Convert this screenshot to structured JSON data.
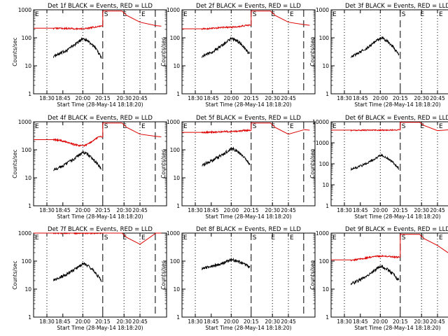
{
  "colors": {
    "events": "#000000",
    "lld": "#dd0000",
    "axes": "#000000",
    "background": "#ffffff"
  },
  "chart_data": [
    {
      "type": "line",
      "title": "Det 1f BLACK = Events, RED = LLD",
      "xlabel": "Start Time (28-May-14 18:18:20)",
      "ylabel": "Counts/sec",
      "ylim": [
        1,
        1000
      ],
      "yscale": "log",
      "yticks": [
        "1",
        "10",
        "100",
        "1000"
      ],
      "xticks": [
        "18:30",
        "18:45",
        "20:00",
        "20:15",
        "20:30",
        "20:45"
      ],
      "markers": [
        "E",
        "S",
        "E",
        "E"
      ],
      "series": [
        {
          "color": "#000000",
          "start_y": 22,
          "peak_y": 95,
          "end_y": 20
        },
        {
          "color": "#dd0000",
          "start_y": 220,
          "peak_y": 210,
          "end_y": 260,
          "saturated": 900
        }
      ]
    },
    {
      "type": "line",
      "title": "Det 2f BLACK = Events, RED = LLD",
      "xlabel": "Start Time (28-May-14 18:18:20)",
      "ylabel": "Counts/sec",
      "ylim": [
        1,
        1000
      ],
      "yscale": "log",
      "yticks": [
        "1",
        "10",
        "100",
        "1000"
      ],
      "xticks": [
        "18:30",
        "18:45",
        "20:00",
        "20:15",
        "20:30",
        "20:45"
      ],
      "markers": [
        "E",
        "S",
        "E",
        "E"
      ],
      "series": [
        {
          "color": "#000000",
          "start_y": 22,
          "peak_y": 95,
          "end_y": 25
        },
        {
          "color": "#dd0000",
          "start_y": 210,
          "peak_y": 240,
          "end_y": 280,
          "saturated": 900
        }
      ]
    },
    {
      "type": "line",
      "title": "Det 3f BLACK = Events, RED = LLD",
      "xlabel": "Start Time (28-May-14 18:18:20)",
      "ylabel": "Counts/sec",
      "ylim": [
        1,
        1000
      ],
      "yscale": "log",
      "yticks": [
        "1",
        "10",
        "100",
        "1000"
      ],
      "xticks": [
        "18:30",
        "18:45",
        "20:00",
        "20:15",
        "20:30",
        "20:45"
      ],
      "markers": [
        "E",
        "S",
        "E",
        "E"
      ],
      "series": [
        {
          "color": "#000000",
          "start_y": 22,
          "peak_y": 100,
          "end_y": 25
        }
      ]
    },
    {
      "type": "line",
      "title": "Det 4f BLACK = Events, RED = LLD",
      "xlabel": "Start Time (28-May-14 18:18:20)",
      "ylabel": "Counts/sec",
      "ylim": [
        1,
        1000
      ],
      "yscale": "log",
      "yticks": [
        "1",
        "10",
        "100",
        "1000"
      ],
      "xticks": [
        "18:30",
        "18:45",
        "20:00",
        "20:15",
        "20:30",
        "20:45"
      ],
      "markers": [
        "E",
        "S",
        "E",
        "E"
      ],
      "series": [
        {
          "color": "#000000",
          "start_y": 20,
          "peak_y": 80,
          "end_y": 20
        },
        {
          "color": "#dd0000",
          "start_y": 230,
          "peak_y": 140,
          "end_y": 290,
          "saturated": 900
        }
      ]
    },
    {
      "type": "line",
      "title": "Det 5f BLACK = Events, RED = LLD",
      "xlabel": "Start Time (28-May-14 18:18:20)",
      "ylabel": "Counts/sec",
      "ylim": [
        1,
        1000
      ],
      "yscale": "log",
      "yticks": [
        "1",
        "10",
        "100",
        "1000"
      ],
      "xticks": [
        "18:30",
        "18:45",
        "20:00",
        "20:15",
        "20:30",
        "20:45"
      ],
      "markers": [
        "E",
        "S",
        "E",
        "E"
      ],
      "series": [
        {
          "color": "#000000",
          "start_y": 30,
          "peak_y": 110,
          "end_y": 30
        },
        {
          "color": "#dd0000",
          "start_y": 420,
          "peak_y": 450,
          "end_y": 500,
          "saturated": 900
        }
      ]
    },
    {
      "type": "line",
      "title": "Det 6f BLACK = Events, RED = LLD",
      "xlabel": "Start Time (28-May-14 18:18:20)",
      "ylabel": "Counts/sec",
      "ylim": [
        1,
        10000
      ],
      "yscale": "log",
      "yticks": [
        "1",
        "10",
        "100",
        "1000",
        "10000"
      ],
      "xticks": [
        "18:30",
        "18:45",
        "20:00",
        "20:15",
        "20:30",
        "20:45"
      ],
      "markers": [
        "E",
        "S",
        "E",
        "E"
      ],
      "series": [
        {
          "color": "#000000",
          "start_y": 55,
          "peak_y": 250,
          "end_y": 60
        },
        {
          "color": "#dd0000",
          "start_y": 4000,
          "peak_y": 4000,
          "end_y": 4100,
          "saturated": 9500
        }
      ]
    },
    {
      "type": "line",
      "title": "Det 7f BLACK = Events, RED = LLD",
      "xlabel": "Start Time (28-May-14 18:18:20)",
      "ylabel": "Counts/sec",
      "ylim": [
        1,
        1000
      ],
      "yscale": "log",
      "yticks": [
        "1",
        "10",
        "100",
        "1000"
      ],
      "xticks": [
        "18:30",
        "18:45",
        "20:00",
        "20:15",
        "20:30",
        "20:45"
      ],
      "markers": [
        "E",
        "S",
        "E",
        "E"
      ],
      "series": [
        {
          "color": "#000000",
          "start_y": 22,
          "peak_y": 80,
          "end_y": 20
        },
        {
          "color": "#dd0000",
          "start_y": 1000,
          "peak_y": 1000,
          "end_y": 1000,
          "saturated": 1000
        }
      ]
    },
    {
      "type": "line",
      "title": "Det 8f BLACK = Events, RED = LLD",
      "xlabel": "Start Time (28-May-14 18:18:20)",
      "ylabel": "Counts/sec",
      "ylim": [
        1,
        1000
      ],
      "yscale": "log",
      "yticks": [
        "1",
        "10",
        "100",
        "1000"
      ],
      "xticks": [
        "18:30",
        "18:45",
        "20:00",
        "20:15",
        "20:30",
        "20:45"
      ],
      "markers": [
        "E",
        "S",
        "E",
        "E"
      ],
      "series": [
        {
          "color": "#000000",
          "start_y": 55,
          "peak_y": 110,
          "end_y": 60
        }
      ]
    },
    {
      "type": "line",
      "title": "Det 9f BLACK = Events, RED = LLD",
      "xlabel": "Start Time (28-May-14 18:18:20)",
      "ylabel": "Counts/sec",
      "ylim": [
        1,
        1000
      ],
      "yscale": "log",
      "yticks": [
        "1",
        "10",
        "100",
        "1000"
      ],
      "xticks": [
        "18:30",
        "18:45",
        "20:00",
        "20:15",
        "20:30",
        "20:45"
      ],
      "markers": [
        "E",
        "S",
        "E",
        "E"
      ],
      "series": [
        {
          "color": "#000000",
          "start_y": 16,
          "peak_y": 65,
          "end_y": 20
        },
        {
          "color": "#dd0000",
          "start_y": 110,
          "peak_y": 150,
          "end_y": 140,
          "saturated": 900
        }
      ]
    }
  ]
}
